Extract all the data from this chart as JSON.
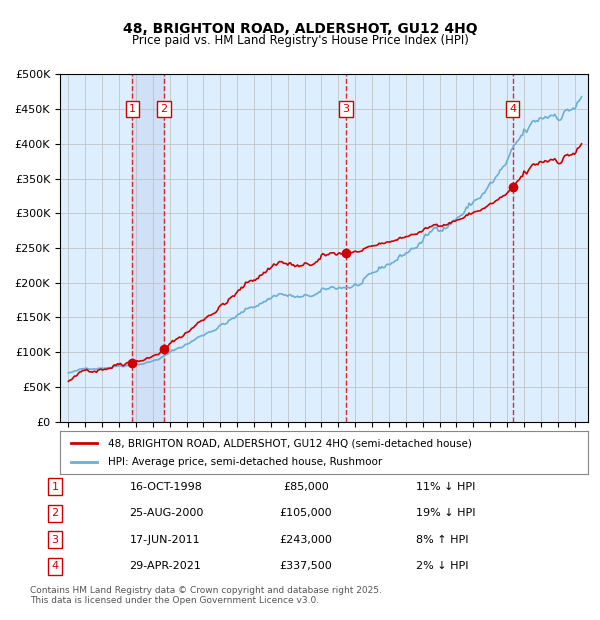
{
  "title": "48, BRIGHTON ROAD, ALDERSHOT, GU12 4HQ",
  "subtitle": "Price paid vs. HM Land Registry's House Price Index (HPI)",
  "legend_line1": "48, BRIGHTON ROAD, ALDERSHOT, GU12 4HQ (semi-detached house)",
  "legend_line2": "HPI: Average price, semi-detached house, Rushmoor",
  "footnote": "Contains HM Land Registry data © Crown copyright and database right 2025.\nThis data is licensed under the Open Government Licence v3.0.",
  "sale_color": "#cc0000",
  "hpi_color": "#6baed6",
  "bg_color": "#ddeeff",
  "grid_color": "#bbbbbb",
  "ylim": [
    0,
    500000
  ],
  "yticks": [
    0,
    50000,
    100000,
    150000,
    200000,
    250000,
    300000,
    350000,
    400000,
    450000,
    500000
  ],
  "sales": [
    {
      "date_year": 1998.79,
      "price": 85000,
      "label": "1"
    },
    {
      "date_year": 2000.65,
      "price": 105000,
      "label": "2"
    },
    {
      "date_year": 2011.46,
      "price": 243000,
      "label": "3"
    },
    {
      "date_year": 2021.33,
      "price": 337500,
      "label": "4"
    }
  ],
  "sale_vlines": [
    1998.79,
    2000.65,
    2011.46,
    2021.33
  ],
  "vline_shade": [
    [
      1998.79,
      2000.65
    ]
  ],
  "table_rows": [
    [
      "1",
      "16-OCT-1998",
      "£85,000",
      "11% ↓ HPI"
    ],
    [
      "2",
      "25-AUG-2000",
      "£105,000",
      "19% ↓ HPI"
    ],
    [
      "3",
      "17-JUN-2011",
      "£243,000",
      "8% ↑ HPI"
    ],
    [
      "4",
      "29-APR-2021",
      "£337,500",
      "2% ↓ HPI"
    ]
  ]
}
